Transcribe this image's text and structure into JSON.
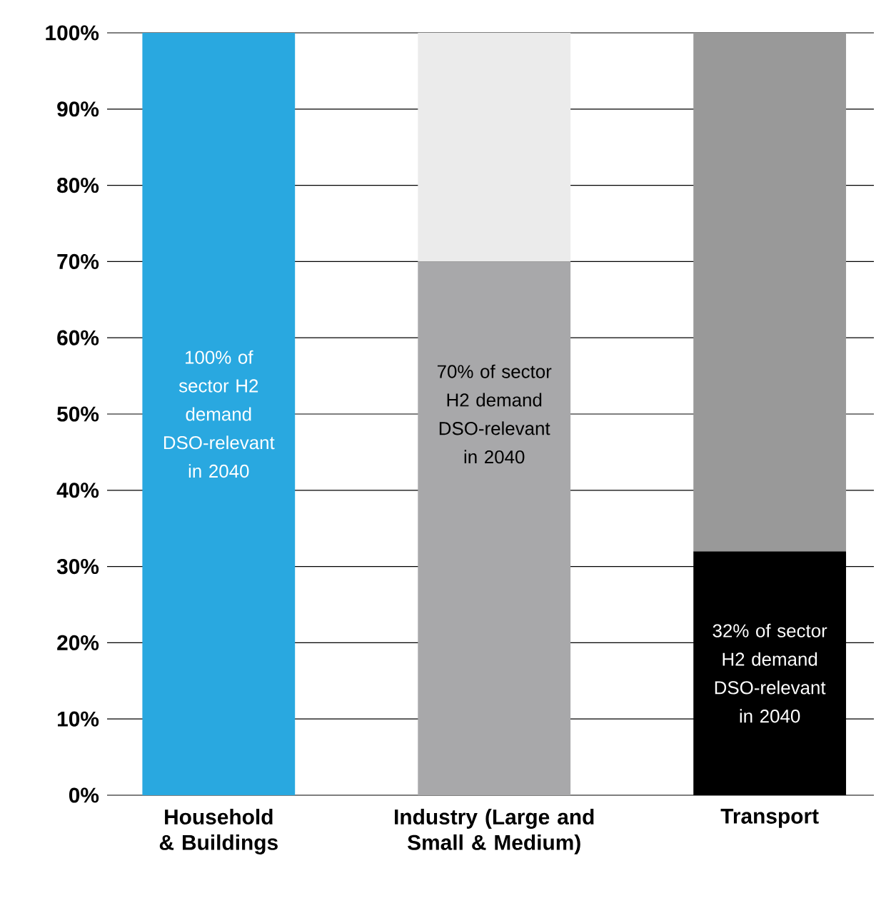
{
  "chart_data": {
    "type": "bar",
    "stacked": true,
    "categories": [
      "Household & Buildings",
      "Industry (Large and Small & Medium)",
      "Transport"
    ],
    "series": [
      {
        "colors": [
          "#29a8e0",
          "#a8a8aa",
          "#000000"
        ],
        "values": [
          100,
          70,
          32
        ]
      },
      {
        "colors": [
          "#ebebeb",
          "#ebebeb",
          "#999999"
        ],
        "values": [
          null,
          30,
          68
        ]
      }
    ],
    "ylim": [
      0,
      100
    ],
    "yticks": [
      {
        "value": 0,
        "label": "0%"
      },
      {
        "value": 10,
        "label": "10%"
      },
      {
        "value": 20,
        "label": "20%"
      },
      {
        "value": 30,
        "label": "30%"
      },
      {
        "value": 40,
        "label": "40%"
      },
      {
        "value": 50,
        "label": "50%"
      },
      {
        "value": 60,
        "label": "60%"
      },
      {
        "value": 70,
        "label": "70%"
      },
      {
        "value": 80,
        "label": "80%"
      },
      {
        "value": 90,
        "label": "90%"
      },
      {
        "value": 100,
        "label": "100%"
      }
    ],
    "grid": "y",
    "annotations": [
      "100% of sector H2 demand DSO-relevant in 2040",
      "70% of sector H2 demand DSO-relevant in 2040",
      "32% of sector H2 demand DSO-relevant in 2040"
    ]
  }
}
